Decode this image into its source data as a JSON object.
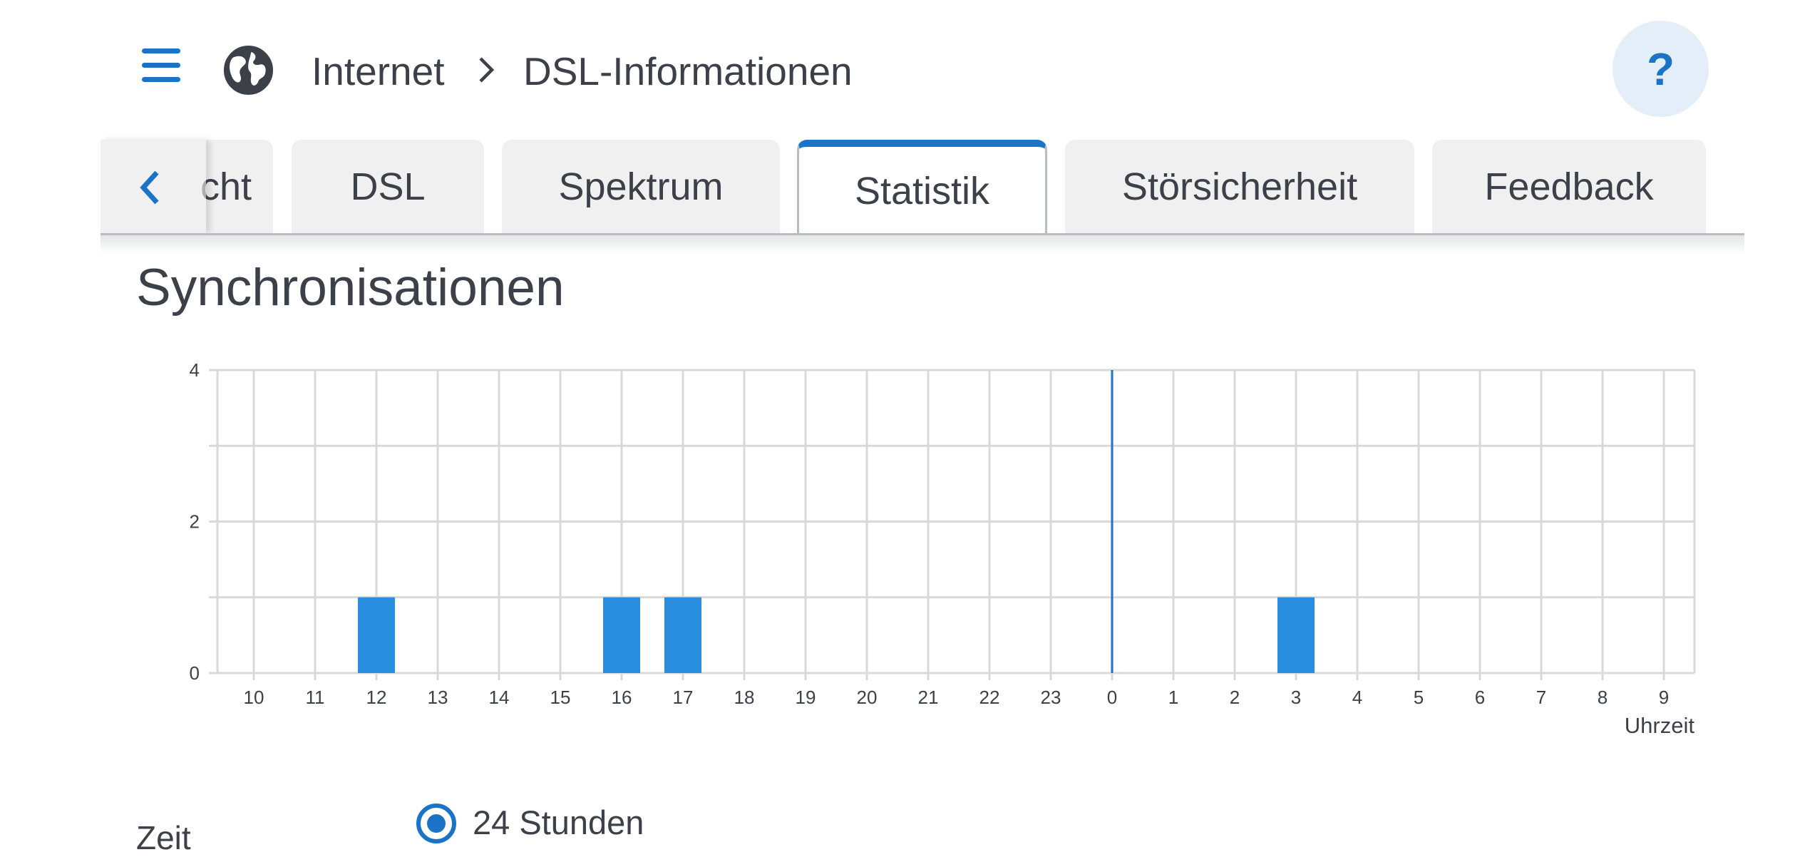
{
  "header": {
    "breadcrumb": [
      "Internet",
      "DSL-Informationen"
    ],
    "help_label": "?"
  },
  "icons": {
    "menu": "hamburger-menu-icon",
    "section": "globe-icon",
    "separator": "chevron-right-icon",
    "tab_scroll": "chevron-left-icon"
  },
  "tabs": [
    {
      "label": "Übersicht",
      "visible_part": "cht",
      "active": false
    },
    {
      "label": "DSL",
      "active": false
    },
    {
      "label": "Spektrum",
      "active": false
    },
    {
      "label": "Statistik",
      "active": true
    },
    {
      "label": "Störsicherheit",
      "active": false
    },
    {
      "label": "Feedback",
      "active": false
    }
  ],
  "section": {
    "title": "Synchronisationen"
  },
  "chart_data": {
    "type": "bar",
    "title": "Synchronisationen",
    "xlabel": "Uhrzeit",
    "ylabel": "",
    "categories": [
      "10",
      "11",
      "12",
      "13",
      "14",
      "15",
      "16",
      "17",
      "18",
      "19",
      "20",
      "21",
      "22",
      "23",
      "0",
      "1",
      "2",
      "3",
      "4",
      "5",
      "6",
      "7",
      "8",
      "9"
    ],
    "values": [
      0,
      0,
      1,
      0,
      0,
      0,
      1,
      1,
      0,
      0,
      0,
      0,
      0,
      0,
      0,
      0,
      0,
      1,
      0,
      0,
      0,
      0,
      0,
      0
    ],
    "ylim": [
      0,
      4
    ],
    "yticks": [
      "0",
      "2",
      "4"
    ],
    "grid": true,
    "day_divider_at": "0",
    "bar_color": "#2a8ee0",
    "divider_color": "#1a73c7"
  },
  "time_control": {
    "label": "Zeit",
    "option_label": "24 Stunden",
    "selected": true
  },
  "colors": {
    "accent": "#1a73c7",
    "text": "#3c4049",
    "tab_bg": "#f0f0f0",
    "help_bg": "#e4eef8"
  }
}
